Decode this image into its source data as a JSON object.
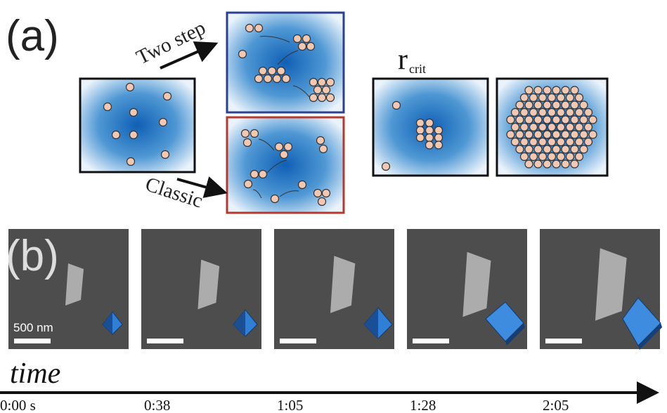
{
  "panel_a": {
    "label": "(a)",
    "two_step": "Two step",
    "classic": "Classic",
    "r_crit": {
      "symbol": "r",
      "subscript": "crit"
    }
  },
  "panel_b": {
    "label": "(b)",
    "scale_bar": "500 nm",
    "time_axis": {
      "label": "time",
      "timestamps": [
        "0:00 s",
        "0:38",
        "1:05",
        "1:28",
        "2:05"
      ]
    }
  }
}
